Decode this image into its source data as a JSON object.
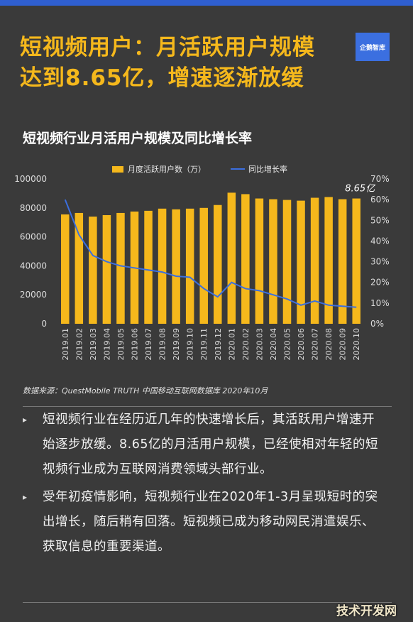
{
  "header": {
    "title_line1": "短视频用户：月活跃用户规模",
    "title_line2": "达到8.65亿，增速逐渐放缓",
    "logo_text": "企鹅智库"
  },
  "chart_title": "短视频行业月活用户规模及同比增长率",
  "chart_data": {
    "type": "bar",
    "categories": [
      "2019.01",
      "2019.02",
      "2019.03",
      "2019.04",
      "2019.05",
      "2019.06",
      "2019.07",
      "2019.08",
      "2019.09",
      "2019.10",
      "2019.11",
      "2019.12",
      "2020.01",
      "2020.02",
      "2020.03",
      "2020.04",
      "2020.05",
      "2020.06",
      "2020.07",
      "2020.08",
      "2020.09",
      "2020.10"
    ],
    "series": [
      {
        "name": "月度活跃用户数（万）",
        "type": "bar",
        "axis": "left",
        "color": "#f5b81c",
        "values": [
          75500,
          76500,
          74000,
          75000,
          76500,
          77500,
          78000,
          79500,
          79000,
          79500,
          80000,
          82000,
          90500,
          89500,
          86500,
          86000,
          85500,
          85000,
          87000,
          87500,
          86000,
          86500
        ]
      },
      {
        "name": "同比增长率",
        "type": "line",
        "axis": "right",
        "color": "#3b6fe0",
        "values": [
          60,
          43,
          33,
          30,
          28,
          27,
          26,
          25,
          23,
          22.5,
          17,
          13,
          20,
          17,
          16,
          14,
          12,
          9,
          11,
          9,
          8.5,
          8
        ]
      }
    ],
    "y_left": {
      "min": 0,
      "max": 100000,
      "ticks": [
        "0",
        "20000",
        "40000",
        "60000",
        "80000",
        "100000"
      ]
    },
    "y_right": {
      "min": 0,
      "max": 70,
      "ticks": [
        "0%",
        "10%",
        "20%",
        "30%",
        "40%",
        "50%",
        "60%",
        "70%"
      ]
    },
    "annotation": "8.65亿",
    "legend_position": "top-center",
    "grid": false
  },
  "source": "数据来源：QuestMobile TRUTH 中国移动互联网数据库 2020年10月",
  "bullets": [
    {
      "marker": "▸",
      "text": "短视频行业在经历近几年的快速增长后，其活跃用户增速开始逐步放缓。8.65亿的月活用户规模，已经使相对年轻的短视频行业成为互联网消费领域头部行业。"
    },
    {
      "marker": "▸",
      "text": "受年初疫情影响，短视频行业在2020年1-3月呈现短时的突出增长，随后稍有回落。短视频已成为移动网民消遣娱乐、获取信息的重要渠道。"
    }
  ],
  "watermark": "技术开发网"
}
